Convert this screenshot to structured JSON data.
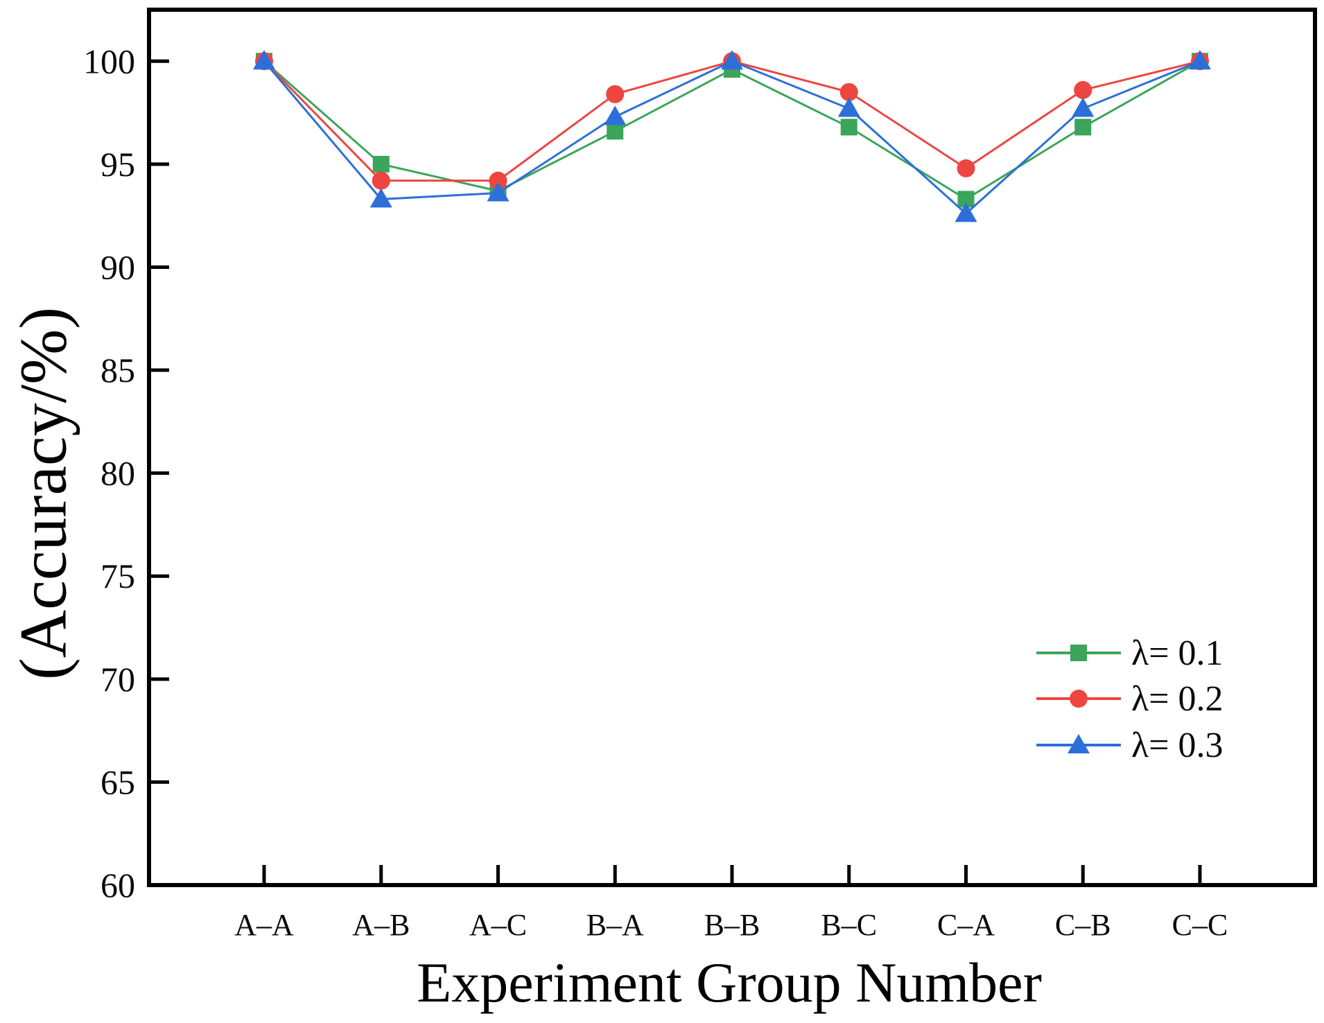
{
  "figure": {
    "background_color": "#ffffff",
    "axis_color": "#000000",
    "text_color": "#0a0a0a"
  },
  "chart_data": {
    "type": "line",
    "title": "",
    "xlabel": "Experiment Group Number",
    "ylabel": "(Accuracy/%)",
    "categories": [
      "A–A",
      "A–B",
      "A–C",
      "B–A",
      "B–B",
      "B–C",
      "C–A",
      "C–B",
      "C–C"
    ],
    "y_ticks": [
      60,
      65,
      70,
      75,
      80,
      85,
      90,
      95,
      100
    ],
    "ylim": [
      60,
      102.5
    ],
    "grid": false,
    "legend_position": "inside lower right",
    "series": [
      {
        "name": "λ= 0.1",
        "marker": "square",
        "color": "#3BA55B",
        "values": [
          100,
          95.0,
          93.7,
          96.6,
          99.6,
          96.8,
          93.3,
          96.8,
          100
        ]
      },
      {
        "name": "λ= 0.2",
        "marker": "circle",
        "color": "#EE4540",
        "values": [
          100,
          94.2,
          94.2,
          98.4,
          100,
          98.5,
          94.8,
          98.6,
          100
        ]
      },
      {
        "name": "λ= 0.3",
        "marker": "triangle",
        "color": "#2D6FD8",
        "values": [
          100,
          93.3,
          93.6,
          97.3,
          100,
          97.7,
          92.6,
          97.7,
          100
        ]
      }
    ]
  }
}
